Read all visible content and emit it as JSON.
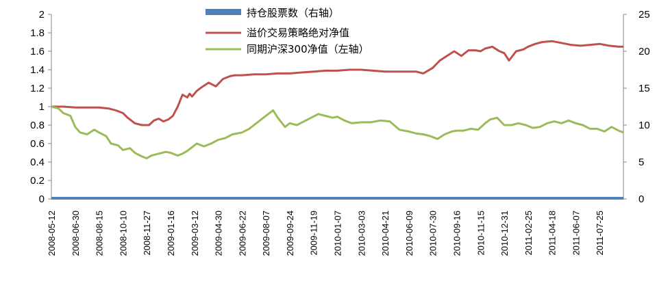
{
  "chart_data": {
    "type": "line",
    "left_axis": {
      "ticks": [
        "0",
        "0.2",
        "0.4",
        "0.6",
        "0.8",
        "1",
        "1.2",
        "1.4",
        "1.6",
        "1.8",
        "2"
      ],
      "min": 0,
      "max": 2
    },
    "right_axis": {
      "ticks": [
        "0",
        "5",
        "10",
        "15",
        "20",
        "25"
      ],
      "min": 0,
      "max": 25
    },
    "x_tick_labels": [
      "2008-05-12",
      "2008-06-30",
      "2008-08-15",
      "2008-10-10",
      "2008-11-27",
      "2009-01-16",
      "2009-03-12",
      "2009-04-30",
      "2009-06-22",
      "2009-08-07",
      "2009-09-24",
      "2009-11-19",
      "2010-01-07",
      "2010-03-03",
      "2010-04-21",
      "2010-06-09",
      "2010-07-30",
      "2010-09-16",
      "2010-11-15",
      "2010-12-31",
      "2011-02-25",
      "2011-04-18",
      "2011-06-07",
      "2011-07-25"
    ],
    "grid": false,
    "legend_position": "top-center",
    "series": [
      {
        "name": "持仓股票数（右轴）",
        "axis": "right",
        "kind": "bar",
        "color": "#4F81BD",
        "values_note": "all zero",
        "x": [
          0,
          1
        ],
        "y": [
          0,
          0
        ]
      },
      {
        "name": "溢价交易策略绝对净值",
        "axis": "left",
        "kind": "line",
        "color": "#C0504D",
        "x": [
          0,
          0.5,
          1,
          1.5,
          2,
          2.4,
          2.7,
          3,
          3.2,
          3.5,
          3.8,
          4.1,
          4.3,
          4.5,
          4.7,
          4.9,
          5.1,
          5.3,
          5.5,
          5.7,
          5.8,
          5.9,
          6.1,
          6.3,
          6.6,
          6.9,
          7.2,
          7.5,
          7.7,
          8,
          8.5,
          9,
          9.5,
          10,
          10.5,
          11,
          11.5,
          12,
          12.5,
          13,
          13.5,
          14,
          14.5,
          15,
          15.3,
          15.6,
          16,
          16.3,
          16.6,
          16.9,
          17.2,
          17.5,
          17.8,
          18,
          18.2,
          18.5,
          18.8,
          19,
          19.2,
          19.5,
          19.8,
          20,
          20.3,
          20.6,
          21,
          21.4,
          21.8,
          22.2,
          22.6,
          23,
          23.4,
          23.8,
          24
        ],
        "y": [
          1.0,
          1.0,
          0.99,
          0.99,
          0.99,
          0.98,
          0.96,
          0.93,
          0.88,
          0.82,
          0.8,
          0.8,
          0.85,
          0.87,
          0.84,
          0.86,
          0.9,
          1.0,
          1.13,
          1.1,
          1.14,
          1.11,
          1.17,
          1.21,
          1.26,
          1.22,
          1.3,
          1.33,
          1.34,
          1.34,
          1.35,
          1.35,
          1.36,
          1.36,
          1.37,
          1.38,
          1.39,
          1.39,
          1.4,
          1.4,
          1.39,
          1.38,
          1.38,
          1.38,
          1.38,
          1.36,
          1.42,
          1.5,
          1.55,
          1.6,
          1.55,
          1.61,
          1.61,
          1.6,
          1.63,
          1.65,
          1.6,
          1.58,
          1.5,
          1.6,
          1.62,
          1.65,
          1.68,
          1.7,
          1.71,
          1.69,
          1.67,
          1.66,
          1.67,
          1.68,
          1.66,
          1.65,
          1.65
        ]
      },
      {
        "name": "同期沪深300净值（左轴）",
        "axis": "left",
        "kind": "line",
        "color": "#9BBB59",
        "x": [
          0,
          0.3,
          0.5,
          0.8,
          1,
          1.2,
          1.5,
          1.8,
          2,
          2.3,
          2.5,
          2.8,
          3,
          3.3,
          3.5,
          3.8,
          4,
          4.2,
          4.5,
          4.8,
          5,
          5.3,
          5.5,
          5.7,
          5.9,
          6.1,
          6.4,
          6.7,
          7,
          7.3,
          7.6,
          8,
          8.3,
          8.6,
          8.9,
          9.1,
          9.3,
          9.5,
          9.8,
          10,
          10.3,
          10.6,
          10.9,
          11.2,
          11.5,
          11.8,
          12,
          12.3,
          12.6,
          13,
          13.4,
          13.8,
          14.2,
          14.6,
          15,
          15.3,
          15.6,
          15.9,
          16.2,
          16.5,
          16.8,
          17,
          17.3,
          17.6,
          17.9,
          18.2,
          18.4,
          18.7,
          19,
          19.3,
          19.6,
          19.9,
          20.2,
          20.5,
          20.8,
          21.1,
          21.4,
          21.7,
          22,
          22.3,
          22.6,
          22.9,
          23.2,
          23.5,
          23.8,
          24
        ],
        "y": [
          1.0,
          0.98,
          0.93,
          0.9,
          0.78,
          0.72,
          0.7,
          0.75,
          0.72,
          0.68,
          0.6,
          0.58,
          0.53,
          0.55,
          0.5,
          0.46,
          0.44,
          0.47,
          0.49,
          0.51,
          0.5,
          0.47,
          0.49,
          0.52,
          0.56,
          0.6,
          0.57,
          0.6,
          0.64,
          0.66,
          0.7,
          0.72,
          0.76,
          0.82,
          0.88,
          0.92,
          0.96,
          0.88,
          0.78,
          0.82,
          0.8,
          0.84,
          0.88,
          0.92,
          0.9,
          0.88,
          0.89,
          0.85,
          0.82,
          0.83,
          0.83,
          0.85,
          0.84,
          0.75,
          0.73,
          0.71,
          0.7,
          0.68,
          0.65,
          0.7,
          0.73,
          0.74,
          0.74,
          0.76,
          0.75,
          0.82,
          0.86,
          0.88,
          0.8,
          0.8,
          0.82,
          0.8,
          0.77,
          0.78,
          0.82,
          0.84,
          0.82,
          0.85,
          0.82,
          0.8,
          0.76,
          0.76,
          0.73,
          0.78,
          0.74,
          0.72
        ]
      }
    ]
  }
}
